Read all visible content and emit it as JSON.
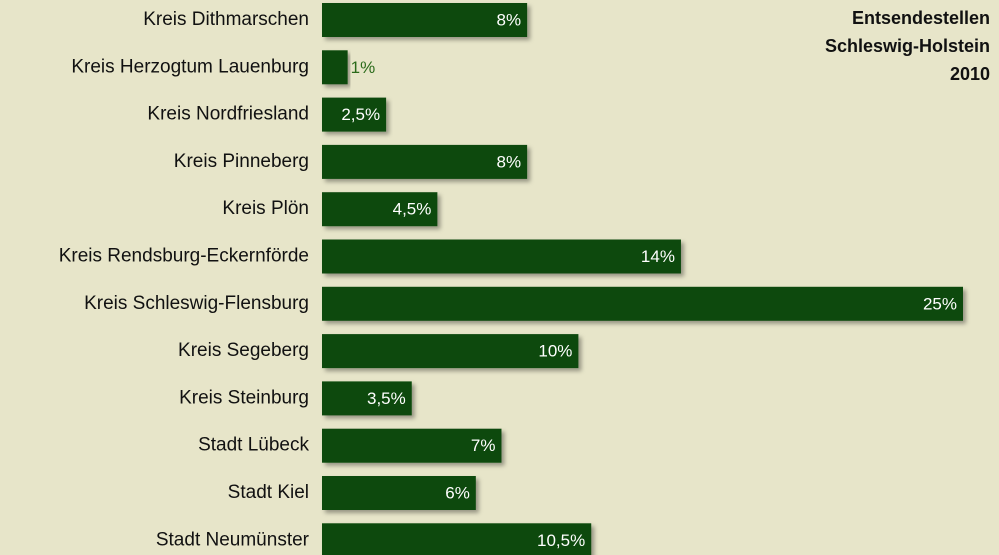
{
  "chart_data": {
    "type": "bar",
    "orientation": "horizontal",
    "title": [
      "Entsendestellen",
      "Schleswig-Holstein",
      "2010"
    ],
    "categories": [
      "Kreis Dithmarschen",
      "Kreis Herzogtum Lauenburg",
      "Kreis Nordfriesland",
      "Kreis Pinneberg",
      "Kreis Plön",
      "Kreis Rendsburg-Eckernförde",
      "Kreis Schleswig-Flensburg",
      "Kreis Segeberg",
      "Kreis Steinburg",
      "Stadt Lübeck",
      "Stadt Kiel",
      "Stadt Neumünster"
    ],
    "values": [
      8,
      1,
      2.5,
      8,
      4.5,
      14,
      25,
      10,
      3.5,
      7,
      6,
      10.5
    ],
    "value_labels": [
      "8%",
      "1%",
      "2,5%",
      "8%",
      "4,5%",
      "14%",
      "25%",
      "10%",
      "3,5%",
      "7%",
      "6%",
      "10,5%"
    ],
    "color": "#0c4a0c",
    "xlim": [
      0,
      25
    ]
  }
}
